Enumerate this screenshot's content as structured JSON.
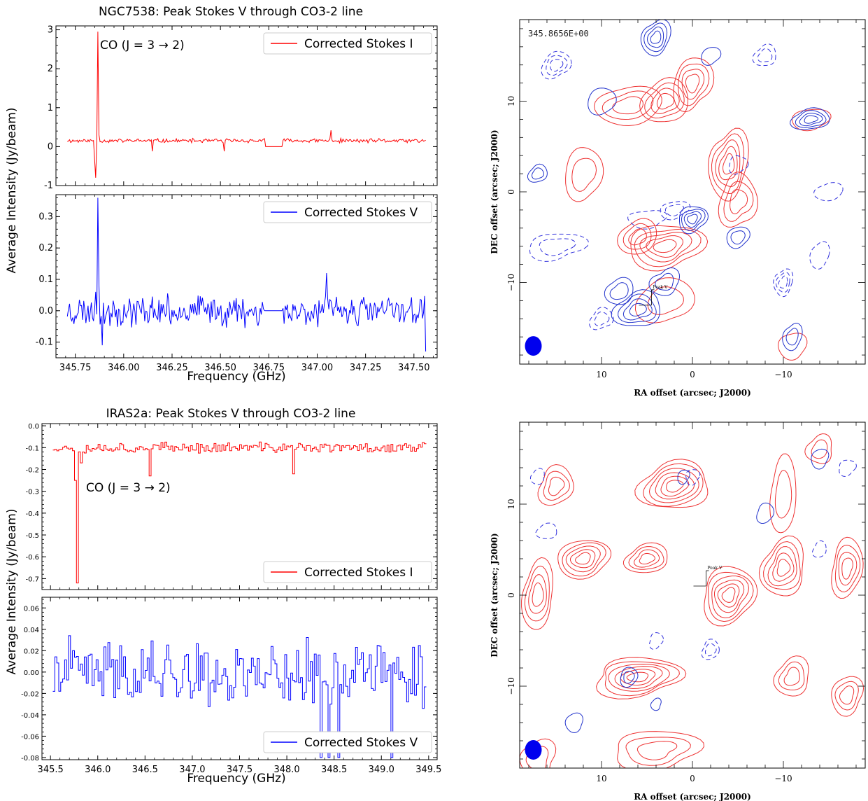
{
  "chart_data": [
    {
      "type": "line",
      "title": "NGC7538: Peak Stokes V through CO3-2 line",
      "xlabel": "Frequency (GHz)",
      "ylabel": "Average Intensity (Jy/beam)",
      "xlim": [
        345.65,
        347.62
      ],
      "xticks": [
        "345.75",
        "346.00",
        "346.25",
        "346.50",
        "346.75",
        "347.00",
        "347.25",
        "347.50"
      ],
      "panels": [
        {
          "series": [
            {
              "name": "Corrected Stokes I",
              "color": "#ff0000",
              "baseline": 0.15,
              "noise": 0.05,
              "features": [
                [
                  345.852,
                  -0.35
                ],
                [
                  345.858,
                  -0.8
                ],
                [
                  345.866,
                  2.95
                ],
                [
                  345.872,
                  0.3
                ],
                [
                  346.15,
                  -0.12
                ],
                [
                  346.52,
                  -0.12
                ],
                [
                  347.07,
                  0.42
                ]
              ],
              "gap": [
                346.73,
                346.82,
                0.0
              ]
            }
          ],
          "ylim": [
            -1.0,
            3.1
          ],
          "yticks": [
            "-1",
            "0",
            "1",
            "2",
            "3"
          ],
          "annotation": "CO (J = 3 → 2)",
          "legend_position": "upper right"
        },
        {
          "series": [
            {
              "name": "Corrected Stokes V",
              "color": "#0000ff",
              "baseline": 0.0,
              "noise": 0.045,
              "features": [
                [
                  345.855,
                  0.06
                ],
                [
                  345.866,
                  0.36
                ],
                [
                  345.872,
                  0.08
                ],
                [
                  345.89,
                  -0.11
                ],
                [
                  347.05,
                  0.12
                ],
                [
                  347.57,
                  -0.13
                ]
              ],
              "gap": [
                346.73,
                346.82,
                0.0
              ]
            }
          ],
          "ylim": [
            -0.15,
            0.37
          ],
          "yticks": [
            "-0.1",
            "0.0",
            "0.1",
            "0.2",
            "0.3"
          ],
          "legend_position": "upper right"
        }
      ]
    },
    {
      "type": "line",
      "title": "IRAS2a: Peak Stokes V through CO3-2 line",
      "xlabel": "Frequency (GHz)",
      "ylabel": "Average Intensity (Jy/beam)",
      "xlim": [
        345.41,
        349.59
      ],
      "xticks": [
        "345.5",
        "346.0",
        "346.5",
        "347.0",
        "347.5",
        "348.0",
        "348.5",
        "349.0",
        "349.5"
      ],
      "panels": [
        {
          "series": [
            {
              "name": "Corrected Stokes I",
              "color": "#ff0000",
              "baseline": -0.1,
              "noise": 0.022,
              "features": [
                [
                  345.76,
                  -0.25
                ],
                [
                  345.79,
                  -0.72
                ],
                [
                  345.82,
                  -0.17
                ],
                [
                  346.56,
                  -0.23
                ],
                [
                  348.07,
                  -0.22
                ]
              ]
            }
          ],
          "ylim": [
            -0.75,
            0.01
          ],
          "yticks": [
            "0.0",
            "-0.1",
            "-0.2",
            "-0.3",
            "-0.4",
            "-0.5",
            "-0.6",
            "-0.7"
          ],
          "annotation": "CO (J = 3 → 2)",
          "legend_position": "lower right"
        },
        {
          "series": [
            {
              "name": "Corrected Stokes V",
              "color": "#0000ff",
              "baseline": 0.0,
              "noise": 0.028,
              "features": [
                [
                  348.37,
                  -0.08
                ],
                [
                  348.45,
                  -0.08
                ],
                [
                  348.54,
                  -0.08
                ],
                [
                  349.12,
                  -0.08
                ]
              ]
            }
          ],
          "ylim": [
            -0.082,
            0.07
          ],
          "yticks": [
            "0.06",
            "0.04",
            "0.02",
            "0.00",
            "-0.02",
            "-0.04",
            "-0.06",
            "-0.08"
          ],
          "legend_position": "lower right"
        }
      ]
    },
    {
      "type": "contour",
      "label": "345.8656E+00",
      "xlabel": "RA offset (arcsec; J2000)",
      "ylabel": "DEC offset (arcsec; J2000)",
      "xlim": [
        19,
        -19
      ],
      "ylim": [
        -19,
        19
      ],
      "xticks": [
        "10",
        "0",
        "−10"
      ],
      "yticks": [
        "10",
        "0",
        "−10"
      ],
      "marker": "Peak V",
      "marker_pos": [
        4.5,
        -12.5
      ],
      "beam_pos": [
        17.5,
        -17
      ],
      "red_blobs": [
        [
          7,
          9.5,
          3.5,
          2.2,
          3
        ],
        [
          3,
          10,
          2.5,
          2.5,
          4
        ],
        [
          0,
          12,
          2,
          3,
          4
        ],
        [
          -4,
          3,
          2,
          4,
          5
        ],
        [
          -5,
          -1,
          2,
          3,
          3
        ],
        [
          3,
          -6,
          4,
          2.5,
          5
        ],
        [
          6,
          -5,
          2,
          2,
          3
        ],
        [
          3,
          -12,
          3,
          2.5,
          2
        ],
        [
          12,
          2,
          2,
          3,
          2
        ],
        [
          -13,
          8,
          2,
          1.2,
          1
        ],
        [
          -11,
          -17,
          1.5,
          1.5,
          1
        ]
      ],
      "blue_blobs": [
        [
          4,
          17,
          1.5,
          2,
          4
        ],
        [
          -13,
          8,
          2,
          1.2,
          4
        ],
        [
          0,
          -3,
          1.5,
          1.5,
          4
        ],
        [
          3,
          -10,
          1.5,
          1.5,
          2
        ],
        [
          6,
          -13,
          2.5,
          2,
          4
        ],
        [
          10,
          10,
          1.5,
          1.5,
          1
        ],
        [
          -2,
          15,
          1,
          1,
          1
        ],
        [
          -5,
          -5,
          1.2,
          1.2,
          2
        ],
        [
          -11,
          -16,
          1,
          1.5,
          2
        ],
        [
          8,
          -11,
          1.5,
          1.5,
          2
        ],
        [
          17,
          2,
          1,
          1,
          2
        ]
      ],
      "blue_dashed": [
        [
          15,
          14,
          1.5,
          1.5,
          3
        ],
        [
          2,
          -2,
          1.5,
          1,
          2
        ],
        [
          -10,
          -10,
          1,
          1.5,
          3
        ],
        [
          -8,
          15,
          1.2,
          1.2,
          2
        ],
        [
          10,
          -14,
          1.2,
          1.2,
          2
        ],
        [
          -5,
          3,
          1,
          1,
          1
        ],
        [
          15,
          -6,
          3,
          1.5,
          2
        ],
        [
          5,
          -3,
          2,
          1,
          1
        ],
        [
          -14,
          -7,
          1,
          1.5,
          1
        ],
        [
          -15,
          0,
          1.5,
          1,
          1
        ]
      ]
    },
    {
      "type": "contour",
      "xlabel": "RA offset (arcsec; J2000)",
      "ylabel": "DEC offset (arcsec; J2000)",
      "xlim": [
        19,
        -19
      ],
      "ylim": [
        -19,
        19
      ],
      "xticks": [
        "10",
        "0",
        "−10"
      ],
      "yticks": [
        "10",
        "0",
        "−10"
      ],
      "marker": "Peak V",
      "marker_pos": [
        -1.5,
        1
      ],
      "beam_pos": [
        17.5,
        -17
      ],
      "red_blobs": [
        [
          2,
          12,
          4,
          2.5,
          6
        ],
        [
          12,
          4,
          3,
          2,
          5
        ],
        [
          5,
          4,
          2.5,
          1.5,
          4
        ],
        [
          -4,
          0,
          3,
          3,
          6
        ],
        [
          -10,
          3,
          2.5,
          3,
          5
        ],
        [
          6,
          -9,
          5,
          2,
          6
        ],
        [
          17,
          0,
          1.8,
          3.5,
          4
        ],
        [
          -17,
          3,
          1.8,
          3,
          4
        ],
        [
          -17,
          -11,
          1.8,
          2,
          3
        ],
        [
          -11,
          -9,
          2,
          2,
          3
        ],
        [
          15,
          12,
          2,
          2,
          3
        ],
        [
          4,
          -17,
          5,
          2,
          3
        ],
        [
          17,
          -18,
          2,
          2,
          2
        ],
        [
          -14,
          16,
          1.5,
          1.5,
          2
        ],
        [
          -10,
          11,
          1.5,
          4,
          2
        ]
      ],
      "blue_blobs": [
        [
          -8,
          9,
          1,
          1,
          1
        ],
        [
          7,
          -9,
          1,
          1,
          2
        ],
        [
          1,
          13,
          0.7,
          0.7,
          1
        ],
        [
          -14,
          15,
          1,
          1,
          1
        ],
        [
          13,
          -14,
          1,
          1,
          1
        ],
        [
          4,
          -12,
          0.6,
          0.6,
          1
        ]
      ],
      "blue_dashed": [
        [
          17,
          13,
          0.8,
          0.8,
          1
        ],
        [
          16,
          7,
          1.2,
          0.8,
          1
        ],
        [
          -14,
          5,
          0.8,
          0.8,
          1
        ],
        [
          -2,
          -6,
          1,
          1,
          2
        ],
        [
          4,
          -5,
          0.8,
          0.8,
          1
        ],
        [
          -17,
          14,
          1,
          0.8,
          1
        ],
        [
          0,
          13,
          0.8,
          0.8,
          1
        ]
      ]
    }
  ]
}
